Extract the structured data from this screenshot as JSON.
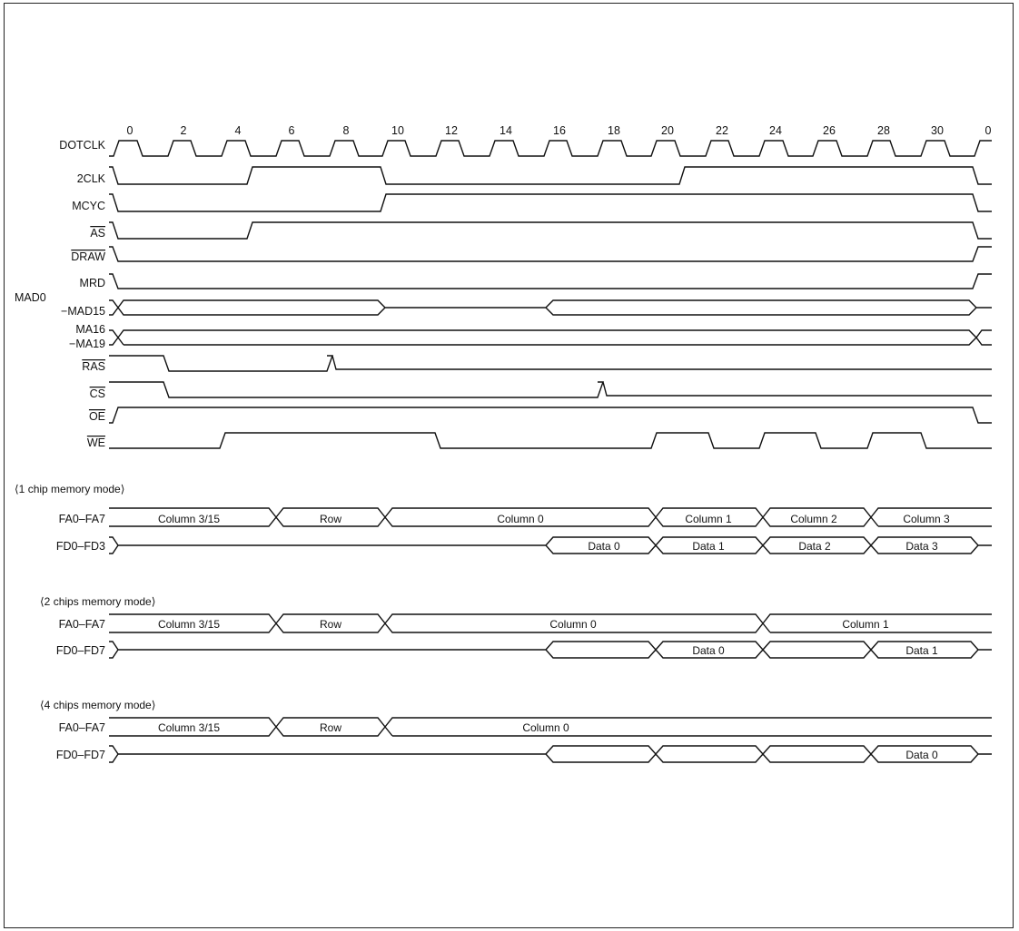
{
  "title": "",
  "dotclk_ticks": [
    "0",
    "2",
    "4",
    "6",
    "8",
    "10",
    "12",
    "14",
    "16",
    "18",
    "20",
    "22",
    "24",
    "26",
    "28",
    "30",
    "0"
  ],
  "signals": [
    {
      "id": "dotclk",
      "label": "DOTCLK",
      "overline": false
    },
    {
      "id": "2clk",
      "label": "2CLK",
      "overline": false
    },
    {
      "id": "mcyc",
      "label": "MCYC",
      "overline": false
    },
    {
      "id": "as",
      "label": "AS",
      "overline": true
    },
    {
      "id": "draw",
      "label": "DRAW",
      "overline": true
    },
    {
      "id": "mrd",
      "label": "MRD",
      "overline": false
    },
    {
      "id": "mad",
      "label": "MAD0",
      "label2": "−MAD15",
      "overline": false
    },
    {
      "id": "ma",
      "label": "MA16",
      "label2": "−MA19",
      "overline": false
    },
    {
      "id": "ras",
      "label": "RAS",
      "overline": true
    },
    {
      "id": "cs",
      "label": "CS",
      "overline": true
    },
    {
      "id": "oe",
      "label": "OE",
      "overline": true
    },
    {
      "id": "we",
      "label": "WE",
      "overline": true
    }
  ],
  "modes": [
    {
      "header": "⟨1 chip memory mode⟩",
      "fa_label": "FA0–FA7",
      "fa_segments": [
        "Column 3/15",
        "Row",
        "Column 0",
        "Column 1",
        "Column 2",
        "Column 3"
      ],
      "fd_label": "FD0–FD3",
      "fd_segments": [
        "Data 0",
        "Data 1",
        "Data 2",
        "Data 3"
      ]
    },
    {
      "header": "⟨2 chips memory mode⟩",
      "fa_label": "FA0–FA7",
      "fa_segments": [
        "Column 3/15",
        "Row",
        "Column 0",
        "Column 1"
      ],
      "fd_label": "FD0–FD7",
      "fd_segments": [
        "",
        "Data 0",
        "",
        "Data 1"
      ]
    },
    {
      "header": "⟨4 chips memory mode⟩",
      "fa_label": "FA0–FA7",
      "fa_segments": [
        "Column 3/15",
        "Row",
        "Column 0"
      ],
      "fd_label": "FD0–FD7",
      "fd_segments": [
        "",
        "",
        "",
        "Data 0"
      ]
    }
  ]
}
